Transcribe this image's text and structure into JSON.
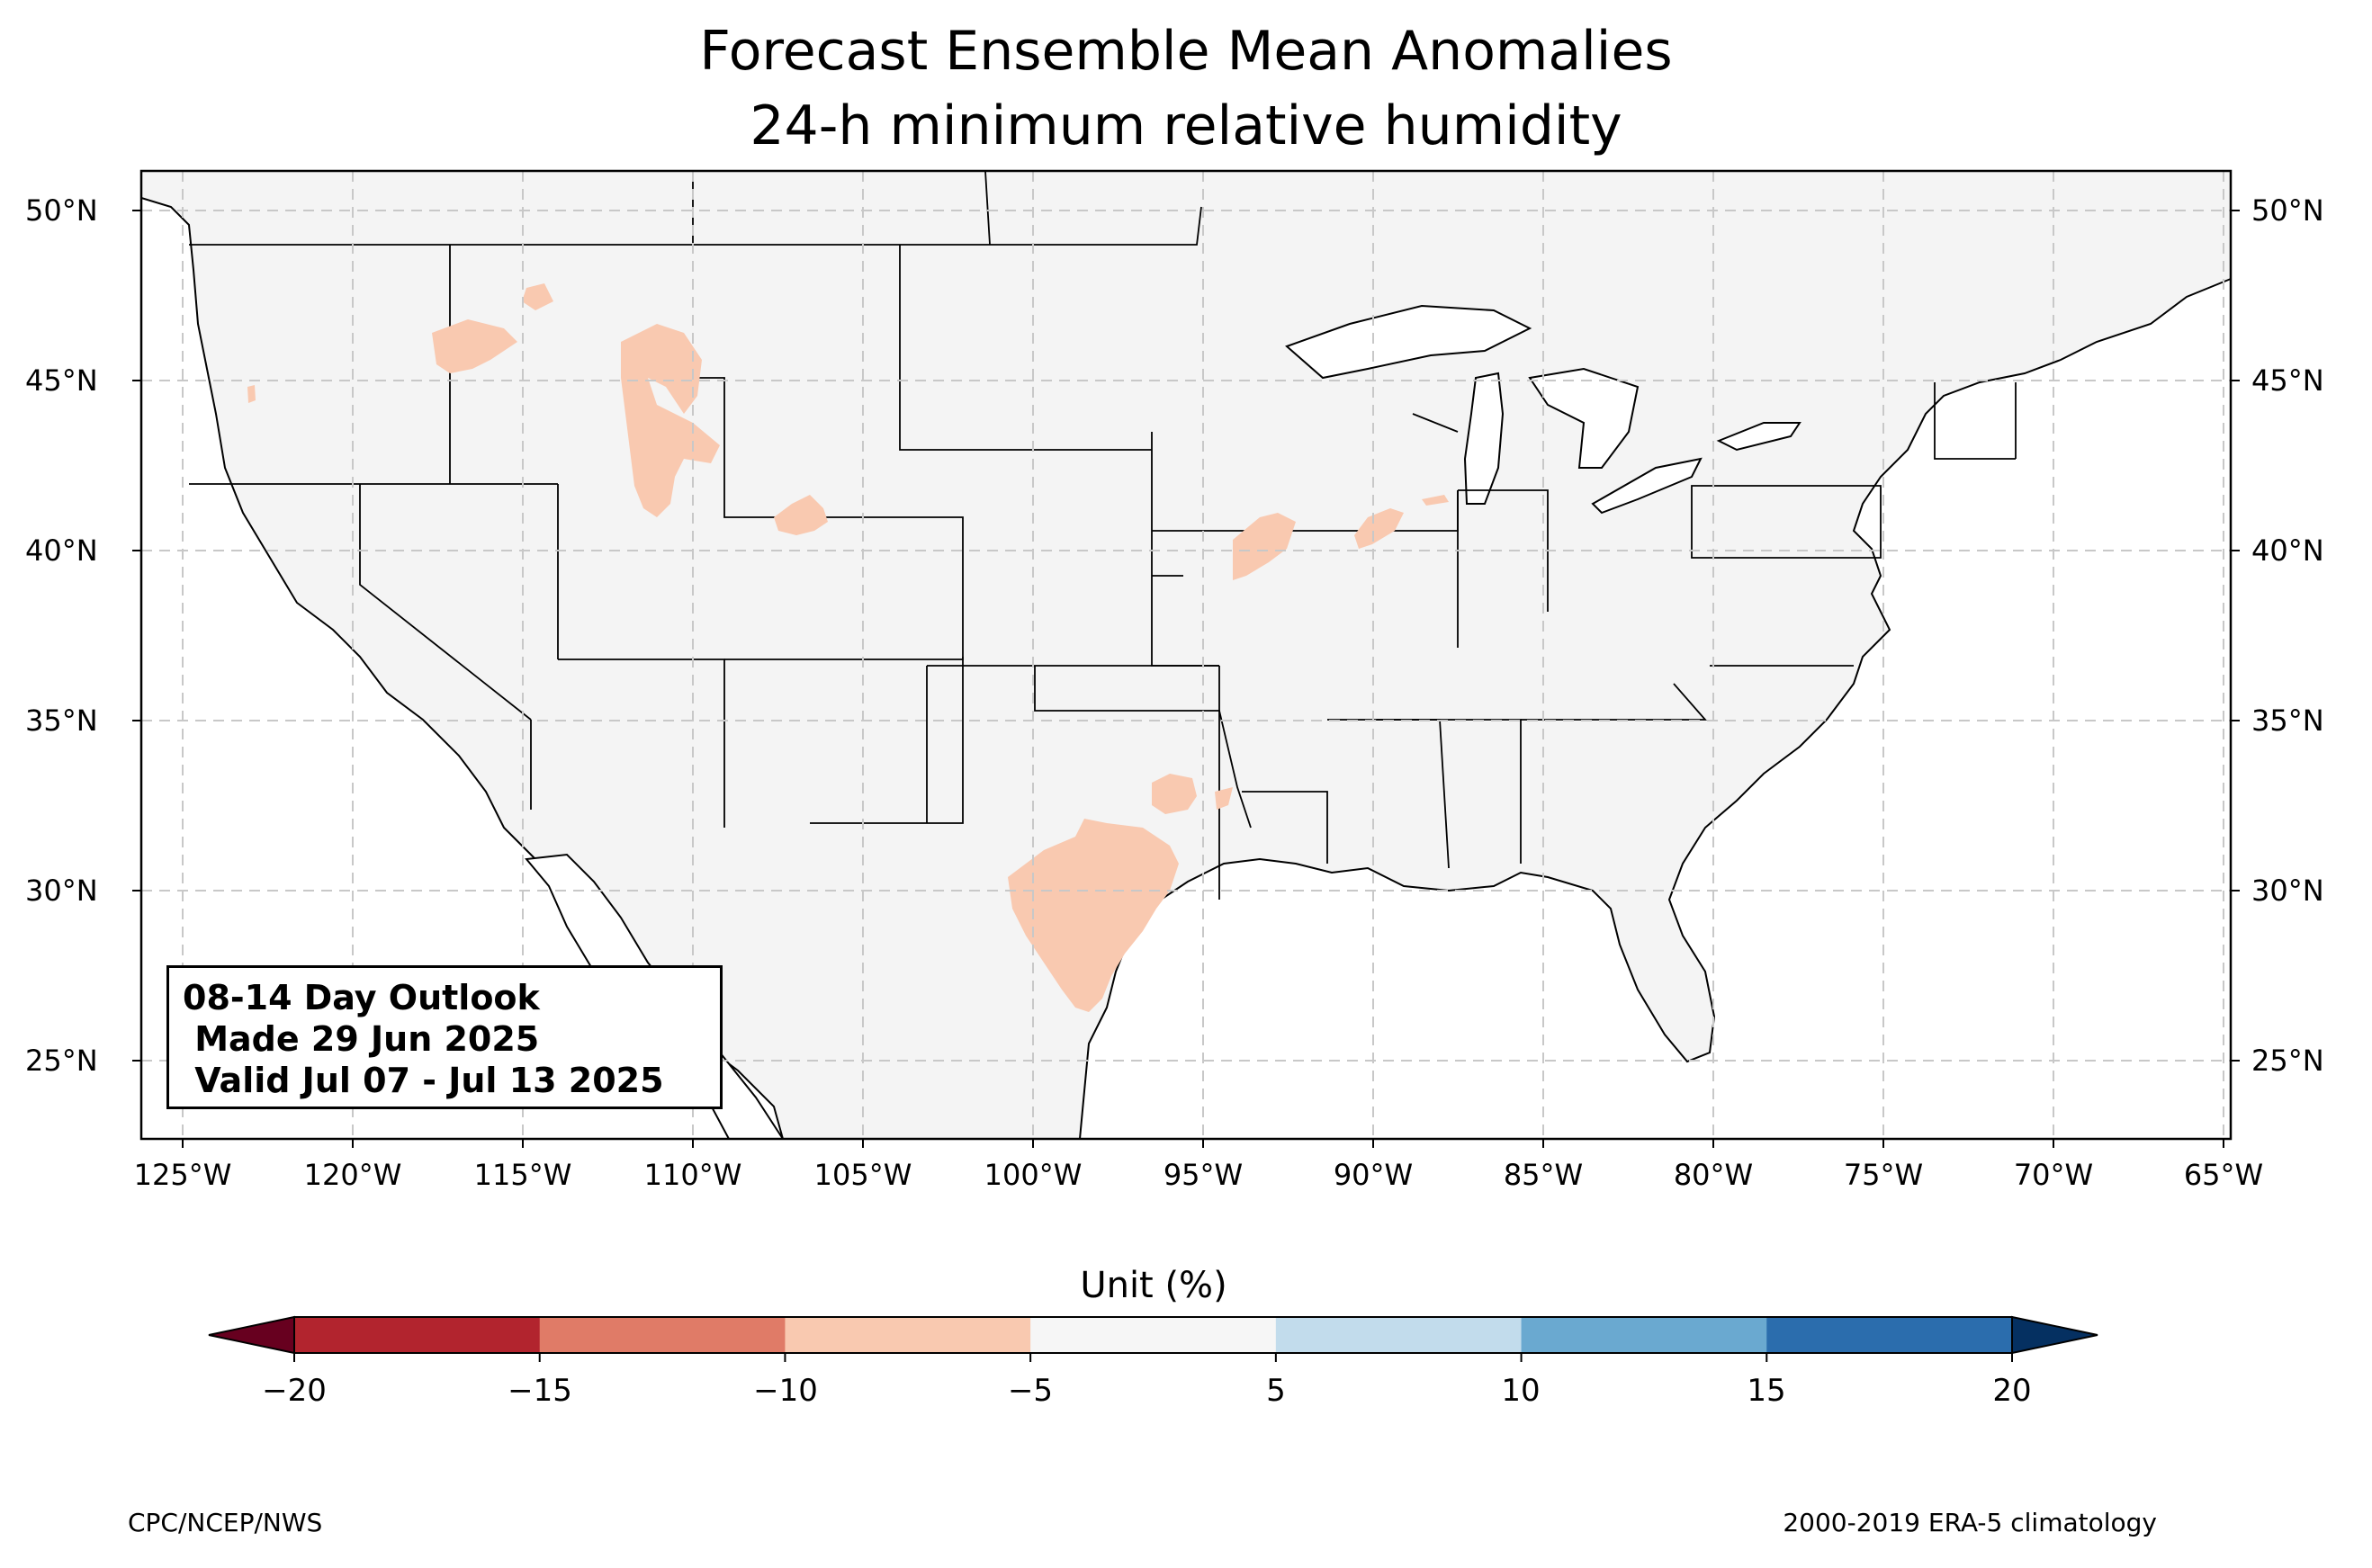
{
  "title_line1": "Forecast Ensemble Mean Anomalies",
  "title_line2": "24-h minimum relative humidity",
  "map": {
    "lon_range": [
      -126.3,
      -64.9
    ],
    "lat_range": [
      22.8,
      51.3
    ],
    "lon_ticks": [
      "125°W",
      "120°W",
      "115°W",
      "110°W",
      "105°W",
      "100°W",
      "95°W",
      "90°W",
      "85°W",
      "80°W",
      "75°W",
      "70°W",
      "65°W"
    ],
    "lat_ticks": [
      "50°N",
      "45°N",
      "40°N",
      "35°N",
      "30°N",
      "25°N"
    ],
    "gridlines": true,
    "land_color": "#f4f4f4",
    "anomaly_color_-10_-5": "#f9c9b0"
  },
  "outlook_box": {
    "line1": "08-14 Day Outlook",
    "line2": " Made 29 Jun 2025",
    "line3": " Valid Jul 07 - Jul 13 2025"
  },
  "colorbar": {
    "label": "Unit (%)",
    "ticks": [
      "−20",
      "−15",
      "−10",
      "−5",
      "5",
      "10",
      "15",
      "20"
    ],
    "colors": [
      "#b2242e",
      "#e07b67",
      "#f9c9b0",
      "#f6f6f6",
      "#c2dcec",
      "#6aa9d0",
      "#2b6dad"
    ],
    "under_color": "#67001f",
    "over_color": "#053061"
  },
  "footer_left": "CPC/NCEP/NWS",
  "footer_right": "2000-2019 ERA-5 climatology"
}
